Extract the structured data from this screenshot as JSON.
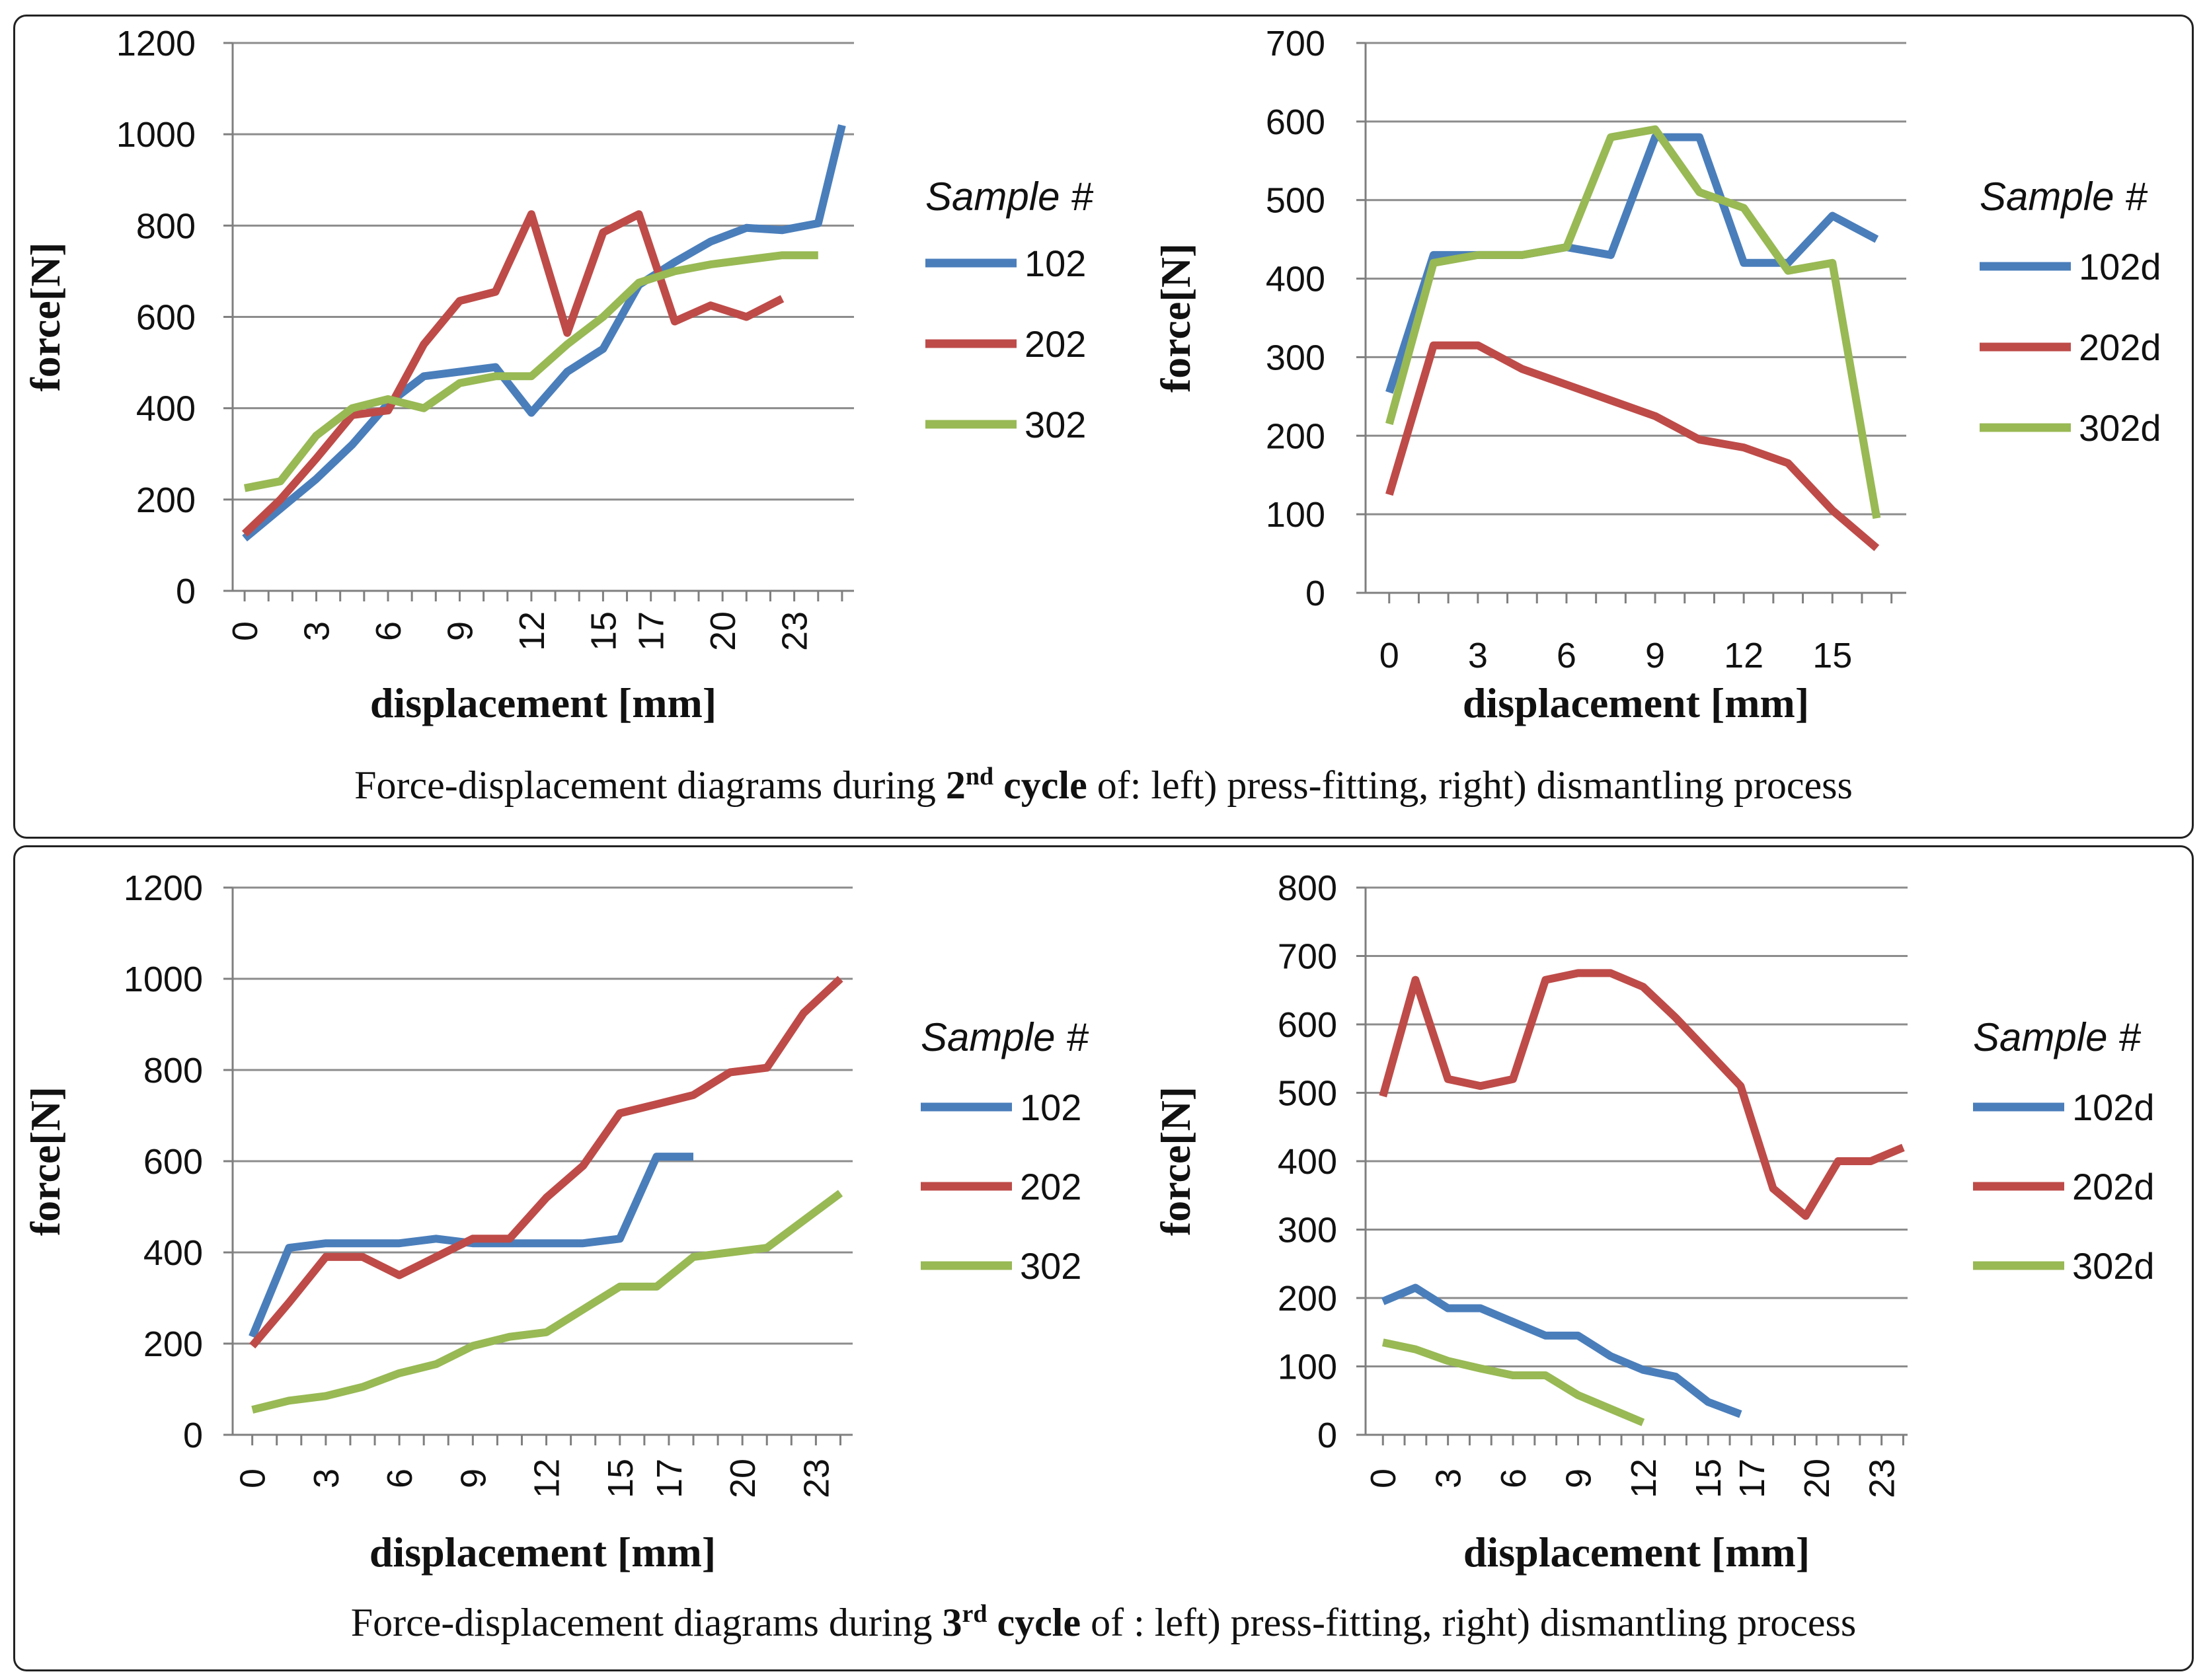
{
  "colors": {
    "s1": "#4A7EBB",
    "s2": "#BE4B48",
    "s3": "#98B954",
    "grid": "#8c8c8c",
    "axis": "#7f7f7f"
  },
  "captions": {
    "cycle2": {
      "pre": "Force-displacement diagrams during ",
      "num": "2",
      "sup": "nd",
      "bold": " cycle",
      "post": " of: left) press-fitting, right) dismantling process"
    },
    "cycle3": {
      "pre": "Force-displacement diagrams during ",
      "num": "3",
      "sup": "rd",
      "bold": " cycle",
      "post": " of : left) press-fitting, right) dismantling process"
    }
  },
  "chart_data": [
    {
      "id": "c2-press",
      "type": "line",
      "title": "",
      "xlabel": "displacement [mm]",
      "ylabel": "force[N]",
      "ylim": [
        0,
        1200
      ],
      "yticks": [
        0,
        200,
        400,
        600,
        800,
        1000,
        1200
      ],
      "xlim": [
        -0.5,
        25.5
      ],
      "xticks": [
        0,
        3,
        6,
        9,
        12,
        15,
        17,
        20,
        23
      ],
      "xtick_rotation": "vertical",
      "grid": "horizontal",
      "legend_title": "Sample #",
      "legend_position": "right",
      "series": [
        {
          "name": "102",
          "color": "s1",
          "x": [
            0,
            1.5,
            3,
            4.5,
            6,
            7.5,
            9,
            10.5,
            12,
            13.5,
            15,
            16.5,
            18,
            19.5,
            21,
            22.5,
            24,
            25
          ],
          "values": [
            115,
            180,
            245,
            320,
            410,
            470,
            480,
            490,
            390,
            480,
            530,
            670,
            720,
            765,
            795,
            790,
            805,
            1020
          ]
        },
        {
          "name": "202",
          "color": "s2",
          "x": [
            0,
            1.5,
            3,
            4.5,
            6,
            7.5,
            9,
            10.5,
            12,
            13.5,
            15,
            16.5,
            18,
            19.5,
            21,
            22.5
          ],
          "values": [
            125,
            200,
            290,
            385,
            395,
            540,
            635,
            655,
            825,
            565,
            785,
            825,
            590,
            625,
            600,
            640
          ]
        },
        {
          "name": "302",
          "color": "s3",
          "x": [
            0,
            1.5,
            3,
            4.5,
            6,
            7.5,
            9,
            10.5,
            12,
            13.5,
            15,
            16.5,
            18,
            19.5,
            21,
            22.5,
            24
          ],
          "values": [
            225,
            240,
            340,
            400,
            420,
            400,
            455,
            470,
            470,
            540,
            600,
            675,
            700,
            715,
            725,
            735,
            735
          ]
        }
      ]
    },
    {
      "id": "c2-dismantle",
      "type": "line",
      "title": "",
      "xlabel": "displacement [mm]",
      "ylabel": "force[N]",
      "ylim": [
        0,
        700
      ],
      "yticks": [
        0,
        100,
        200,
        300,
        400,
        500,
        600,
        700
      ],
      "xlim": [
        -0.8,
        17.5
      ],
      "xticks": [
        0,
        3,
        6,
        9,
        12,
        15
      ],
      "xtick_rotation": "horizontal",
      "grid": "horizontal",
      "legend_title": "Sample #",
      "legend_position": "right",
      "series": [
        {
          "name": "102d",
          "color": "s1",
          "x": [
            0,
            1.5,
            3,
            4.5,
            6,
            7.5,
            9,
            10.5,
            12,
            13.5,
            15,
            16.5
          ],
          "values": [
            255,
            430,
            430,
            430,
            440,
            430,
            580,
            580,
            420,
            420,
            480,
            450
          ]
        },
        {
          "name": "202d",
          "color": "s2",
          "x": [
            0,
            1.5,
            3,
            4.5,
            6,
            7.5,
            9,
            10.5,
            12,
            13.5,
            15,
            16.5
          ],
          "values": [
            125,
            315,
            315,
            285,
            265,
            245,
            225,
            195,
            185,
            165,
            105,
            57
          ]
        },
        {
          "name": "302d",
          "color": "s3",
          "x": [
            0,
            1.5,
            3,
            4.5,
            6,
            7.5,
            9,
            10.5,
            12,
            13.5,
            15,
            16.5
          ],
          "values": [
            215,
            420,
            430,
            430,
            440,
            580,
            590,
            510,
            490,
            410,
            420,
            95
          ]
        }
      ]
    },
    {
      "id": "c3-press",
      "type": "line",
      "title": "",
      "xlabel": "displacement [mm]",
      "ylabel": "force[N]",
      "ylim": [
        0,
        1200
      ],
      "yticks": [
        0,
        200,
        400,
        600,
        800,
        1000,
        1200
      ],
      "xlim": [
        -0.8,
        24.5
      ],
      "xticks": [
        0,
        3,
        6,
        9,
        12,
        15,
        17,
        20,
        23
      ],
      "xtick_rotation": "vertical",
      "grid": "horizontal",
      "legend_title": "Sample #",
      "legend_position": "right",
      "series": [
        {
          "name": "102",
          "color": "s1",
          "x": [
            0,
            1.5,
            3,
            4.5,
            6,
            7.5,
            9,
            10.5,
            12,
            13.5,
            15,
            16.5,
            18
          ],
          "values": [
            215,
            410,
            420,
            420,
            420,
            430,
            420,
            420,
            420,
            420,
            430,
            610,
            610
          ]
        },
        {
          "name": "202",
          "color": "s2",
          "x": [
            0,
            1.5,
            3,
            4.5,
            6,
            7.5,
            9,
            10.5,
            12,
            13.5,
            15,
            16.5,
            18,
            19.5,
            21,
            22.5,
            24
          ],
          "values": [
            195,
            290,
            390,
            390,
            350,
            390,
            430,
            430,
            520,
            590,
            705,
            725,
            745,
            795,
            805,
            925,
            1000
          ]
        },
        {
          "name": "302",
          "color": "s3",
          "x": [
            0,
            1.5,
            3,
            4.5,
            6,
            7.5,
            9,
            10.5,
            12,
            13.5,
            15,
            16.5,
            18,
            19.5,
            21,
            22.5,
            24
          ],
          "values": [
            55,
            75,
            85,
            105,
            135,
            155,
            195,
            215,
            225,
            275,
            325,
            325,
            390,
            400,
            410,
            470,
            530
          ]
        }
      ]
    },
    {
      "id": "c3-dismantle",
      "type": "line",
      "title": "",
      "xlabel": "displacement [mm]",
      "ylabel": "force[N]",
      "ylim": [
        0,
        800
      ],
      "yticks": [
        0,
        100,
        200,
        300,
        400,
        500,
        600,
        700,
        800
      ],
      "xlim": [
        -0.8,
        24.2
      ],
      "xticks": [
        0,
        3,
        6,
        9,
        12,
        15,
        17,
        20,
        23
      ],
      "xtick_rotation": "vertical",
      "grid": "horizontal",
      "legend_title": "Sample #",
      "legend_position": "right",
      "series": [
        {
          "name": "102d",
          "color": "s1",
          "x": [
            0,
            1.5,
            3,
            4.5,
            6,
            7.5,
            9,
            10.5,
            12,
            13.5,
            15,
            16.5
          ],
          "values": [
            195,
            215,
            185,
            185,
            165,
            145,
            145,
            115,
            95,
            85,
            48,
            30
          ]
        },
        {
          "name": "202d",
          "color": "s2",
          "x": [
            0,
            1.5,
            3,
            4.5,
            6,
            7.5,
            9,
            10.5,
            12,
            13.5,
            15,
            16.5,
            18,
            19.5,
            21,
            22.5,
            24
          ],
          "values": [
            495,
            665,
            520,
            510,
            520,
            665,
            675,
            675,
            655,
            610,
            560,
            510,
            360,
            320,
            400,
            400,
            420
          ]
        },
        {
          "name": "302d",
          "color": "s3",
          "x": [
            0,
            1.5,
            3,
            4.5,
            6,
            7.5,
            9,
            10.5,
            12
          ],
          "values": [
            135,
            125,
            108,
            97,
            87,
            87,
            58,
            38,
            18
          ]
        }
      ]
    }
  ]
}
